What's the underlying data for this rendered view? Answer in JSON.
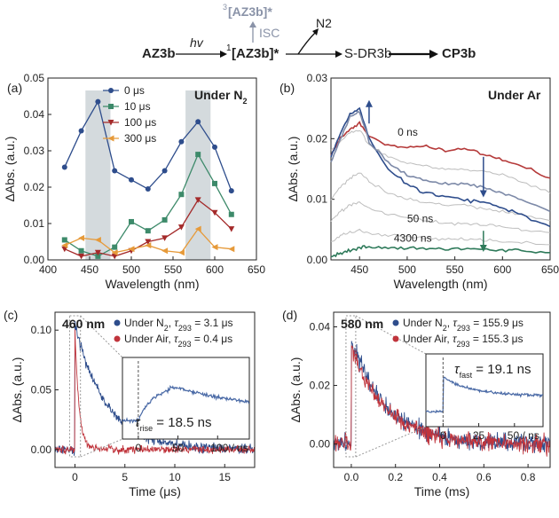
{
  "scheme": {
    "start": "AZ3b",
    "arrow1": "hv",
    "middle": "1[AZ3b]*",
    "middle_sup": "1",
    "middle_base": "[AZ3b]*",
    "triplet_sup": "3",
    "triplet_base": "[AZ3b]*",
    "isc": "ISC",
    "n2": "N2",
    "next": "S-DR3b",
    "final": "CP3b"
  },
  "chart_data": [
    {
      "type": "line",
      "panel": "(a)",
      "annotation": "Under N2",
      "xlabel": "Wavelength (nm)",
      "ylabel": "ΔAbs. (a.u.)",
      "xlim": [
        400,
        650
      ],
      "ylim": [
        0,
        0.05
      ],
      "xticks": [
        400,
        450,
        500,
        550,
        600,
        650
      ],
      "yticks": [
        0.0,
        0.01,
        0.02,
        0.03,
        0.04,
        0.05
      ],
      "legend": "top-left",
      "highlight_bands": [
        [
          445,
          475
        ],
        [
          565,
          595
        ]
      ],
      "x": [
        420,
        440,
        460,
        480,
        500,
        520,
        540,
        560,
        580,
        600,
        620
      ],
      "series": [
        {
          "name": "0 μs",
          "color": "#2e4d8c",
          "marker": "circle",
          "values": [
            0.0255,
            0.0355,
            0.0435,
            0.0245,
            0.022,
            0.0195,
            0.0245,
            0.0325,
            0.038,
            0.031,
            0.019
          ]
        },
        {
          "name": "10 μs",
          "color": "#3d8a6a",
          "marker": "square",
          "values": [
            0.0055,
            0.0025,
            0.001,
            0.0035,
            0.0105,
            0.008,
            0.011,
            0.018,
            0.029,
            0.021,
            0.0125
          ]
        },
        {
          "name": "100 μs",
          "color": "#a42a2a",
          "marker": "triangle-down",
          "values": [
            0.003,
            0.001,
            0.002,
            0.001,
            0.0025,
            0.005,
            0.006,
            0.009,
            0.0165,
            0.013,
            0.0085
          ]
        },
        {
          "name": "300 μs",
          "color": "#e69a3a",
          "marker": "triangle-left",
          "values": [
            0.004,
            0.006,
            0.0055,
            0.002,
            0.003,
            0.004,
            0.0025,
            0.002,
            0.0085,
            0.0035,
            0.003
          ]
        }
      ]
    },
    {
      "type": "line",
      "panel": "(b)",
      "annotation": "Under Ar",
      "xlabel": "Wavelength (nm)",
      "ylabel": "ΔAbs. (a.u.)",
      "xlim": [
        420,
        650
      ],
      "ylim": [
        0,
        0.03
      ],
      "xticks": [
        450,
        500,
        550,
        600,
        650
      ],
      "yticks": [
        0.0,
        0.01,
        0.02,
        0.03
      ],
      "labels": [
        "0 ns",
        "50 ns",
        "4300 ns"
      ],
      "x": [
        420,
        430,
        440,
        450,
        460,
        480,
        500,
        520,
        540,
        560,
        580,
        600,
        620,
        650
      ],
      "series": [
        {
          "color": "#b53a3a",
          "values": [
            0.0175,
            0.02,
            0.0215,
            0.0225,
            0.0205,
            0.019,
            0.0185,
            0.019,
            0.018,
            0.0185,
            0.0175,
            0.0165,
            0.0155,
            0.0135
          ]
        },
        {
          "color": "#2e4d8c",
          "values": [
            0.017,
            0.021,
            0.024,
            0.025,
            0.02,
            0.015,
            0.0125,
            0.011,
            0.0105,
            0.01,
            0.0095,
            0.0085,
            0.0075,
            0.0055
          ]
        },
        {
          "color": "#7d8aa8",
          "values": [
            0.016,
            0.02,
            0.0235,
            0.0245,
            0.0195,
            0.016,
            0.014,
            0.013,
            0.0125,
            0.0125,
            0.012,
            0.011,
            0.01,
            0.008
          ]
        },
        {
          "color": "#bdbdbd",
          "values": [
            0.018,
            0.0195,
            0.021,
            0.0215,
            0.019,
            0.017,
            0.016,
            0.0155,
            0.015,
            0.015,
            0.0145,
            0.014,
            0.013,
            0.011
          ]
        },
        {
          "color": "#bdbdbd",
          "values": [
            0.01,
            0.012,
            0.0135,
            0.0145,
            0.013,
            0.011,
            0.01,
            0.0095,
            0.009,
            0.009,
            0.0085,
            0.008,
            0.0075,
            0.0065
          ]
        },
        {
          "color": "#bdbdbd",
          "values": [
            0.0065,
            0.008,
            0.009,
            0.0095,
            0.0085,
            0.0075,
            0.007,
            0.0065,
            0.006,
            0.006,
            0.0058,
            0.0055,
            0.005,
            0.0045
          ]
        },
        {
          "color": "#bdbdbd",
          "values": [
            0.003,
            0.004,
            0.0045,
            0.005,
            0.0045,
            0.004,
            0.0038,
            0.0036,
            0.0034,
            0.0034,
            0.0032,
            0.003,
            0.0028,
            0.0025
          ]
        },
        {
          "color": "#2e7a5a",
          "values": [
            0.0005,
            0.001,
            0.0015,
            0.002,
            0.0022,
            0.002,
            0.0018,
            0.002,
            0.0018,
            0.0018,
            0.0017,
            0.0016,
            0.0015,
            0.0012
          ]
        }
      ]
    },
    {
      "type": "line",
      "panel": "(c)",
      "annotation": "460 nm",
      "xlabel": "Time (μs)",
      "ylabel": "ΔAbs. (a.u.)",
      "xlim": [
        -2,
        18
      ],
      "ylim": [
        -0.015,
        0.115
      ],
      "xticks": [
        0,
        5,
        10,
        15
      ],
      "yticks": [
        0.0,
        0.05,
        0.1
      ],
      "legend": "top-right",
      "series": [
        {
          "name": "Under N2, τ293 = 3.1 μs",
          "color": "#2e4d8c",
          "amplitude": 0.105,
          "tau": 3.1,
          "noise": 0.004
        },
        {
          "name": "Under Air, τ293 = 0.4 μs",
          "color": "#c0343c",
          "amplitude": 0.1,
          "tau": 0.4,
          "noise": 0.003
        }
      ],
      "inset": {
        "label": "τrise = 18.5 ns",
        "xticks": [
          0,
          50,
          100
        ],
        "xtick_labels": [
          "0",
          "50",
          "100 / ns"
        ],
        "xlim": [
          -20,
          140
        ],
        "rise": 18.5
      }
    },
    {
      "type": "line",
      "panel": "(d)",
      "annotation": "580 nm",
      "xlabel": "Time (ms)",
      "ylabel": "ΔAbs. (a.u.)",
      "xlim": [
        -0.08,
        0.9
      ],
      "ylim": [
        -0.008,
        0.045
      ],
      "xticks": [
        0.0,
        0.2,
        0.4,
        0.6,
        0.8
      ],
      "yticks": [
        0.0,
        0.02,
        0.04
      ],
      "legend": "top-right",
      "series": [
        {
          "name": "Under N2, τ293 = 155.9 μs",
          "color": "#2e4d8c",
          "amplitude": 0.036,
          "tau": 0.1559,
          "noise": 0.003
        },
        {
          "name": "Under Air, τ293 = 155.3 μs",
          "color": "#c0343c",
          "amplitude": 0.033,
          "tau": 0.1553,
          "noise": 0.003
        }
      ],
      "inset": {
        "label": "τfast = 19.1 ns",
        "xticks": [
          0,
          25,
          50
        ],
        "xtick_labels": [
          "0",
          "25",
          "50 / ns"
        ],
        "xlim": [
          -12,
          70
        ],
        "fast": 19.1
      }
    }
  ]
}
